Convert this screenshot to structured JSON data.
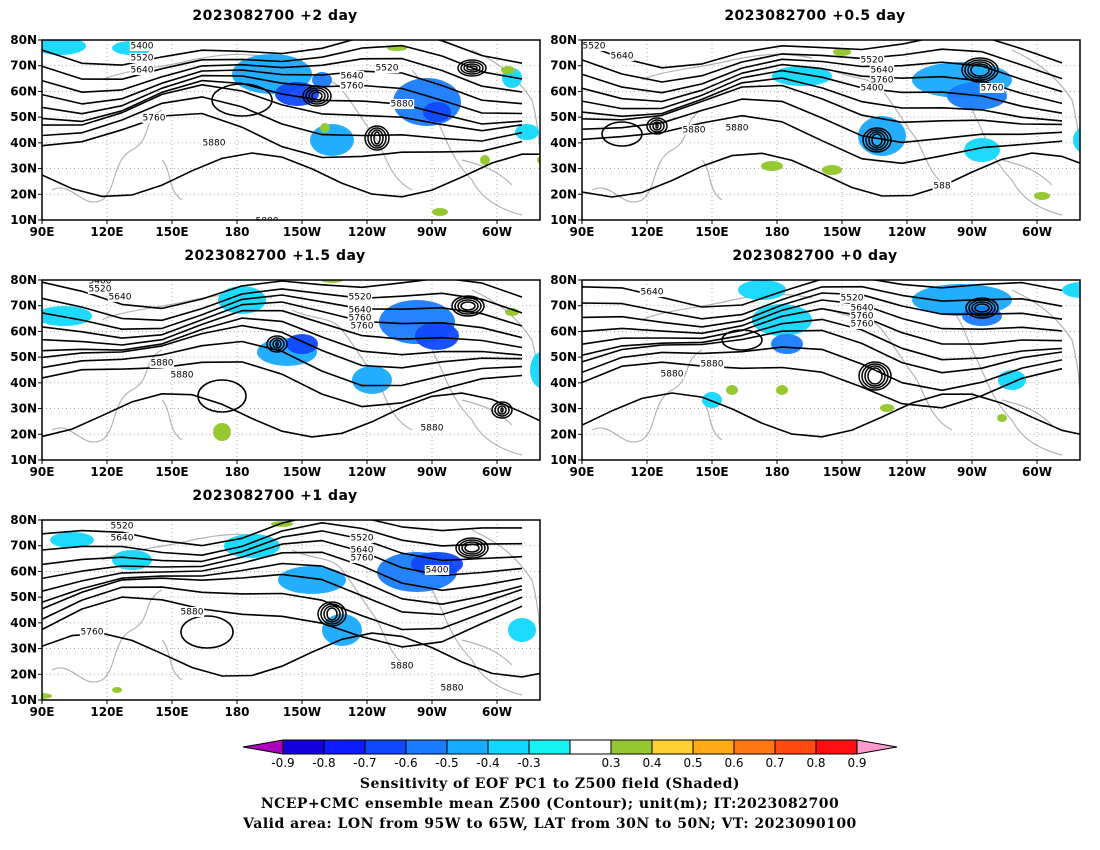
{
  "panels": [
    {
      "id": "p1",
      "title": "2023082700 +2 day"
    },
    {
      "id": "p2",
      "title": "2023082700 +0.5 day"
    },
    {
      "id": "p3",
      "title": "2023082700 +1.5 day"
    },
    {
      "id": "p4",
      "title": "2023082700 +0 day"
    },
    {
      "id": "p5",
      "title": "2023082700 +1 day"
    }
  ],
  "axes": {
    "lat_ticks": [
      "10N",
      "20N",
      "30N",
      "40N",
      "50N",
      "60N",
      "70N",
      "80N"
    ],
    "lon_ticks": [
      "90E",
      "120E",
      "150E",
      "180",
      "150W",
      "120W",
      "90W",
      "60W"
    ]
  },
  "contour_labels": {
    "p1": [
      "5400",
      "5520",
      "5640",
      "5520",
      "5640",
      "5760",
      "5880",
      "5760",
      "5880",
      "5880"
    ],
    "p2": [
      "5520",
      "5640",
      "5520",
      "5640",
      "5760",
      "5400",
      "5760",
      "5880",
      "5880",
      "588"
    ],
    "p3": [
      "5400",
      "5520",
      "5640",
      "5520",
      "5640",
      "5760",
      "5760",
      "5880",
      "5880",
      "5880"
    ],
    "p4": [
      "5640",
      "5520",
      "5640",
      "5760",
      "5760",
      "5880",
      "5880"
    ],
    "p5": [
      "5520",
      "5640",
      "5520",
      "5640",
      "5760",
      "5400",
      "5880",
      "5760",
      "5880",
      "5880"
    ]
  },
  "colorbar": {
    "labels": [
      "-0.9",
      "-0.8",
      "-0.7",
      "-0.6",
      "-0.5",
      "-0.4",
      "-0.3",
      "0.3",
      "0.4",
      "0.5",
      "0.6",
      "0.7",
      "0.8",
      "0.9"
    ],
    "colors": [
      "#b000c0",
      "#1400d8",
      "#0c1cff",
      "#1048ff",
      "#1a7cff",
      "#18aaff",
      "#12d8ff",
      "#18f2f2",
      "#ffffff",
      "#96c832",
      "#ffd232",
      "#ffaa14",
      "#ff7814",
      "#ff4b10",
      "#ff1010",
      "#ff9ad0"
    ]
  },
  "captions": [
    "Sensitivity of EOF PC1 to Z500 field (Shaded)",
    "NCEP+CMC ensemble mean Z500 (Contour); unit(m); IT:2023082700",
    "Valid area: LON from 95W to 65W, LAT from 30N to 50N; VT: 2023090100"
  ]
}
